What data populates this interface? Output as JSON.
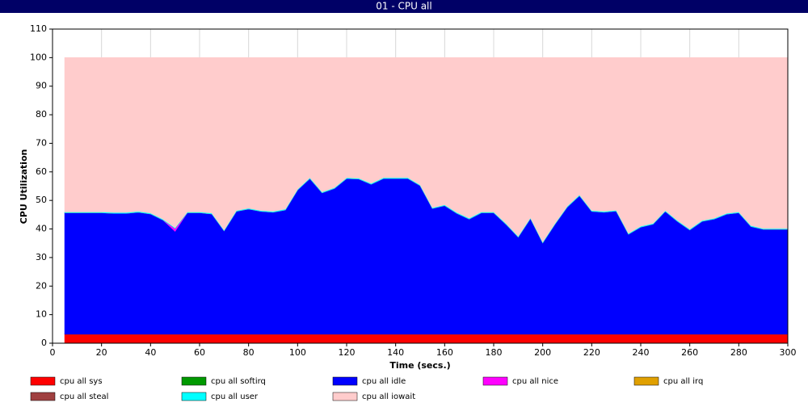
{
  "chart_data": {
    "type": "stacked-area",
    "title": "01 - CPU all",
    "x_label": "Time (secs.)",
    "y_label": "CPU Utilization",
    "x": [
      5,
      10,
      15,
      20,
      25,
      30,
      35,
      40,
      45,
      50,
      55,
      60,
      65,
      70,
      75,
      80,
      85,
      90,
      95,
      100,
      105,
      110,
      115,
      120,
      125,
      130,
      135,
      140,
      145,
      150,
      155,
      160,
      165,
      170,
      175,
      180,
      185,
      190,
      195,
      200,
      205,
      210,
      215,
      220,
      225,
      230,
      235,
      240,
      245,
      250,
      255,
      260,
      265,
      270,
      275,
      280,
      285,
      290,
      295,
      300
    ],
    "series": [
      {
        "name": "cpu all sys",
        "color": "#ff0000",
        "values": [
          3.2,
          3.2,
          3.2,
          3.2,
          3.2,
          3.2,
          3.2,
          3.2,
          3.2,
          3.2,
          3.2,
          3.2,
          3.2,
          3.2,
          3.2,
          3.2,
          3.2,
          3.2,
          3.2,
          3.2,
          3.2,
          3.2,
          3.2,
          3.2,
          3.2,
          3.2,
          3.2,
          3.2,
          3.2,
          3.2,
          3.2,
          3.2,
          3.2,
          3.2,
          3.2,
          3.2,
          3.2,
          3.2,
          3.2,
          3.2,
          3.2,
          3.2,
          3.2,
          3.2,
          3.2,
          3.2,
          3.2,
          3.2,
          3.2,
          3.2,
          3.2,
          3.2,
          3.2,
          3.2,
          3.2,
          3.2,
          3.2,
          3.2,
          3.2,
          3.2
        ]
      },
      {
        "name": "cpu all softirq",
        "color": "#009900",
        "values": [
          0,
          0,
          0,
          0,
          0,
          0,
          0,
          0,
          0,
          0,
          0,
          0,
          0,
          0,
          0,
          0,
          0,
          0,
          0,
          0,
          0,
          0,
          0,
          0,
          0,
          0,
          0,
          0,
          0,
          0,
          0,
          0,
          0,
          0,
          0,
          0,
          0,
          0,
          0,
          0,
          0,
          0,
          0,
          0,
          0,
          0,
          0,
          0,
          0,
          0,
          0,
          0,
          0,
          0,
          0,
          0,
          0,
          0,
          0,
          0
        ]
      },
      {
        "name": "cpu all idle",
        "color": "#0000ff",
        "values": [
          42.5,
          42.5,
          42.5,
          42.5,
          42.3,
          42.3,
          42.7,
          42.1,
          40,
          36,
          42.5,
          42.5,
          42.1,
          36.2,
          43,
          43.8,
          43,
          42.7,
          43.5,
          50.5,
          54.5,
          49.5,
          51,
          54.5,
          54.3,
          52.5,
          54.5,
          54.5,
          54.5,
          52,
          44,
          45,
          42.3,
          40.3,
          42.5,
          42.5,
          38.5,
          34,
          40.5,
          32,
          38.5,
          44.5,
          48.5,
          43,
          42.7,
          43.1,
          35,
          37.5,
          38.5,
          43,
          39.5,
          36.5,
          39.5,
          40.3,
          42,
          42.5,
          37.7,
          36.7,
          36.7,
          36.7
        ]
      },
      {
        "name": "cpu all nice",
        "color": "#ff00ff",
        "values": [
          0,
          0,
          0,
          0,
          0,
          0,
          0,
          0,
          0,
          1,
          0,
          0,
          0,
          0,
          0,
          0,
          0,
          0,
          0,
          0,
          0,
          0,
          0,
          0,
          0,
          0,
          0,
          0,
          0,
          0,
          0,
          0,
          0,
          0,
          0,
          0,
          0,
          0,
          0,
          0,
          0,
          0,
          0,
          0,
          0,
          0,
          0,
          0,
          0,
          0,
          0,
          0,
          0,
          0,
          0,
          0,
          0,
          0,
          0,
          0
        ]
      },
      {
        "name": "cpu all irq",
        "color": "#e0a000",
        "values": [
          0,
          0,
          0,
          0,
          0,
          0,
          0,
          0,
          0,
          0,
          0,
          0,
          0,
          0,
          0,
          0,
          0,
          0,
          0,
          0,
          0,
          0,
          0,
          0,
          0,
          0,
          0,
          0,
          0,
          0,
          0,
          0,
          0,
          0,
          0,
          0,
          0,
          0,
          0,
          0,
          0,
          0,
          0,
          0,
          0,
          0,
          0,
          0,
          0,
          0,
          0,
          0,
          0,
          0,
          0,
          0,
          0,
          0,
          0,
          0
        ]
      },
      {
        "name": "cpu all steal",
        "color": "#a04040",
        "values": [
          0,
          0,
          0,
          0,
          0,
          0,
          0,
          0,
          0,
          0,
          0,
          0,
          0,
          0,
          0,
          0,
          0,
          0,
          0,
          0,
          0,
          0,
          0,
          0,
          0,
          0,
          0,
          0,
          0,
          0,
          0,
          0,
          0,
          0,
          0,
          0,
          0,
          0,
          0,
          0,
          0,
          0,
          0,
          0,
          0,
          0,
          0,
          0,
          0,
          0,
          0,
          0,
          0,
          0,
          0,
          0,
          0,
          0,
          0,
          0
        ]
      },
      {
        "name": "cpu all user",
        "color": "#00ffff",
        "values": [
          0.3,
          0.3,
          0.3,
          0.3,
          0.3,
          0.3,
          0.3,
          0.3,
          0.3,
          0.3,
          0.3,
          0.3,
          0.3,
          0.3,
          0.3,
          0.3,
          0.3,
          0.3,
          0.3,
          0.3,
          0.3,
          0.3,
          0.3,
          0.3,
          0.3,
          0.3,
          0.3,
          0.3,
          0.3,
          0.3,
          0.3,
          0.3,
          0.3,
          0.3,
          0.3,
          0.3,
          0.3,
          0.3,
          0.3,
          0.3,
          0.3,
          0.3,
          0.3,
          0.3,
          0.3,
          0.3,
          0.3,
          0.3,
          0.3,
          0.3,
          0.3,
          0.3,
          0.3,
          0.3,
          0.3,
          0.3,
          0.3,
          0.3,
          0.3,
          0.3
        ]
      },
      {
        "name": "cpu all iowait",
        "color": "#ffcccc",
        "values": [
          54,
          54,
          54,
          54,
          54.2,
          54.2,
          53.8,
          54.4,
          56.5,
          59.5,
          54,
          54,
          54.4,
          60.3,
          53.5,
          52.7,
          53.5,
          53.8,
          53,
          46,
          42,
          47,
          45.5,
          42,
          42.2,
          44,
          42,
          42,
          42,
          44.5,
          52.5,
          51.5,
          54.2,
          56.2,
          54,
          54,
          58,
          62.5,
          56,
          64.5,
          58,
          52,
          48,
          53.5,
          53.8,
          53.4,
          61.5,
          59,
          58,
          53.5,
          57,
          60,
          57,
          56.2,
          54.5,
          54,
          58.8,
          59.8,
          59.8,
          59.8
        ]
      }
    ],
    "xlim": [
      0,
      300
    ],
    "xticks": [
      0,
      20,
      40,
      60,
      80,
      100,
      120,
      140,
      160,
      180,
      200,
      220,
      240,
      260,
      280,
      300
    ],
    "ylim": [
      0,
      110
    ],
    "yticks": [
      0,
      10,
      20,
      30,
      40,
      50,
      60,
      70,
      80,
      90,
      100,
      110
    ],
    "grid": "x"
  }
}
